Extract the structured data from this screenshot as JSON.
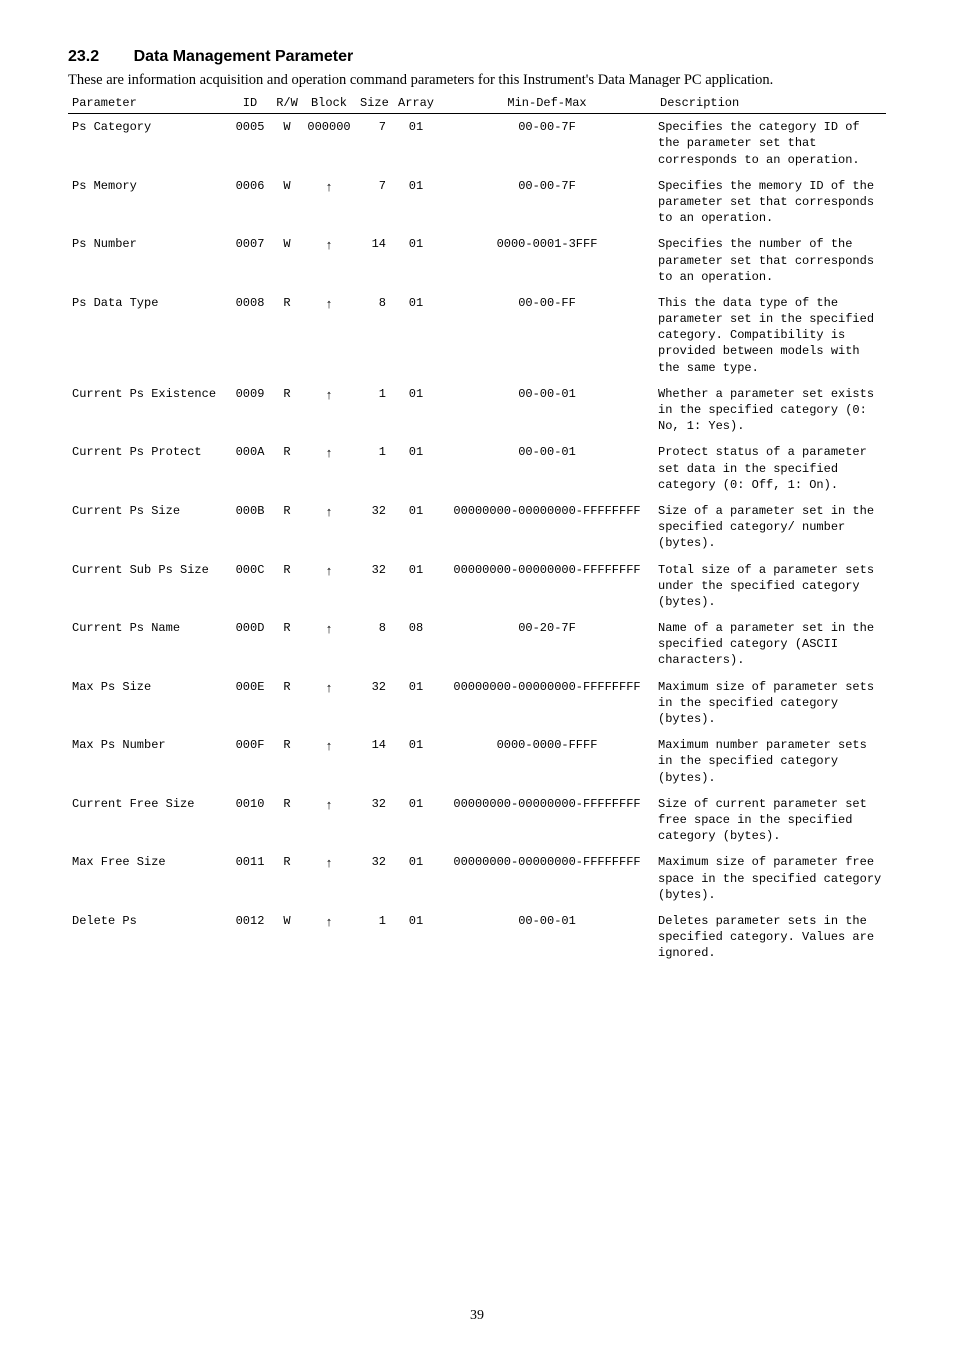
{
  "heading": {
    "number": "23.2",
    "title": "Data Management Parameter"
  },
  "intro": "These are information acquisition and operation command parameters for this Instrument's Data Manager PC application.",
  "page_number": "39",
  "columns": [
    "Parameter",
    "ID",
    "R/W",
    "Block",
    "Size",
    "Array",
    "Min-Def-Max",
    "Description"
  ],
  "arrow_glyph": "↑",
  "rows": [
    {
      "parameter": "Ps Category",
      "id": "0005",
      "rw": "W",
      "block": "000000",
      "size": "7",
      "array": "01",
      "mdm": "00-00-7F",
      "desc": "Specifies the category ID of the parameter set that corresponds to an operation."
    },
    {
      "parameter": "Ps Memory",
      "id": "0006",
      "rw": "W",
      "block": "↑",
      "size": "7",
      "array": "01",
      "mdm": "00-00-7F",
      "desc": "Specifies the memory ID of the parameter set that corresponds to an operation."
    },
    {
      "parameter": "Ps Number",
      "id": "0007",
      "rw": "W",
      "block": "↑",
      "size": "14",
      "array": "01",
      "mdm": "0000-0001-3FFF",
      "desc": "Specifies the number of the parameter set that corresponds to an operation."
    },
    {
      "parameter": "Ps Data Type",
      "id": "0008",
      "rw": "R",
      "block": "↑",
      "size": "8",
      "array": "01",
      "mdm": "00-00-FF",
      "desc": "This the data type of the parameter set in the specified category. Compatibility is provided between models with the same type."
    },
    {
      "parameter": "Current Ps Existence",
      "id": "0009",
      "rw": "R",
      "block": "↑",
      "size": "1",
      "array": "01",
      "mdm": "00-00-01",
      "desc": "Whether a parameter set exists in the specified category (0: No, 1: Yes)."
    },
    {
      "parameter": "Current Ps Protect",
      "id": "000A",
      "rw": "R",
      "block": "↑",
      "size": "1",
      "array": "01",
      "mdm": "00-00-01",
      "desc": "Protect status of a parameter set data in the specified category (0: Off, 1: On)."
    },
    {
      "parameter": "Current Ps Size",
      "id": "000B",
      "rw": "R",
      "block": "↑",
      "size": "32",
      "array": "01",
      "mdm": "00000000-00000000-FFFFFFFF",
      "desc": "Size of a parameter set in the specified category/ number (bytes)."
    },
    {
      "parameter": "Current Sub Ps Size",
      "id": "000C",
      "rw": "R",
      "block": "↑",
      "size": "32",
      "array": "01",
      "mdm": "00000000-00000000-FFFFFFFF",
      "desc": "Total size of a parameter sets under the specified category (bytes)."
    },
    {
      "parameter": "Current Ps Name",
      "id": "000D",
      "rw": "R",
      "block": "↑",
      "size": "8",
      "array": "08",
      "mdm": "00-20-7F",
      "desc": "Name of a parameter set in the specified category (ASCII characters)."
    },
    {
      "parameter": "Max Ps Size",
      "id": "000E",
      "rw": "R",
      "block": "↑",
      "size": "32",
      "array": "01",
      "mdm": "00000000-00000000-FFFFFFFF",
      "desc": "Maximum size of parameter sets in the specified category (bytes)."
    },
    {
      "parameter": "Max Ps Number",
      "id": "000F",
      "rw": "R",
      "block": "↑",
      "size": "14",
      "array": "01",
      "mdm": "0000-0000-FFFF",
      "desc": "Maximum number parameter sets in the specified category (bytes)."
    },
    {
      "parameter": "Current Free Size",
      "id": "0010",
      "rw": "R",
      "block": "↑",
      "size": "32",
      "array": "01",
      "mdm": "00000000-00000000-FFFFFFFF",
      "desc": "Size of current parameter set free space in the specified category (bytes)."
    },
    {
      "parameter": "Max Free Size",
      "id": "0011",
      "rw": "R",
      "block": "↑",
      "size": "32",
      "array": "01",
      "mdm": "00000000-00000000-FFFFFFFF",
      "desc": "Maximum size of parameter free space in the specified category (bytes)."
    },
    {
      "parameter": "Delete Ps",
      "id": "0012",
      "rw": "W",
      "block": "↑",
      "size": "1",
      "array": "01",
      "mdm": "00-00-01",
      "desc": "Deletes parameter sets in the specified category. Values are ignored."
    }
  ]
}
